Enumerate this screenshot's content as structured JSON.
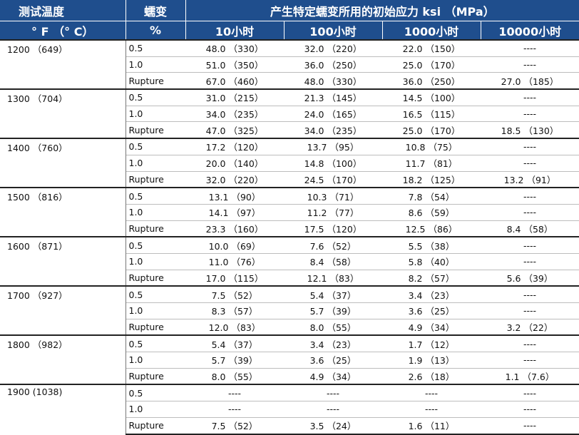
{
  "header": {
    "temp_label": "测试温度",
    "strain_label": "蠕变",
    "stress_label": "产生特定蠕变所用的初始应力 ksi （MPa）",
    "temp_unit": "° F （° C）",
    "strain_unit": "%",
    "time_cols": [
      "10小时",
      "100小时",
      "1000小时",
      "10000小时"
    ]
  },
  "groups": [
    {
      "temp": "1200 （649）",
      "rows": [
        {
          "strain": "0.5",
          "v": [
            "48.0 （330）",
            "32.0 （220）",
            "22.0 （150）",
            "----"
          ]
        },
        {
          "strain": "1.0",
          "v": [
            "51.0 （350）",
            "36.0 （250）",
            "25.0 （170）",
            "----"
          ]
        },
        {
          "strain": "Rupture",
          "v": [
            "67.0 （460）",
            "48.0 （330）",
            "36.0 （250）",
            "27.0 （185）"
          ]
        }
      ]
    },
    {
      "temp": "1300 （704）",
      "rows": [
        {
          "strain": "0.5",
          "v": [
            "31.0 （215）",
            "21.3 （145）",
            "14.5 （100）",
            "----"
          ]
        },
        {
          "strain": "1.0",
          "v": [
            "34.0 （235）",
            "24.0 （165）",
            "16.5 （115）",
            "----"
          ]
        },
        {
          "strain": "Rupture",
          "v": [
            "47.0 （325）",
            "34.0 （235）",
            "25.0 （170）",
            "18.5 （130）"
          ]
        }
      ]
    },
    {
      "temp": "1400 （760）",
      "rows": [
        {
          "strain": "0.5",
          "v": [
            "17.2 （120）",
            "13.7 （95）",
            "10.8 （75）",
            "----"
          ]
        },
        {
          "strain": "1.0",
          "v": [
            "20.0 （140）",
            "14.8 （100）",
            "11.7 （81）",
            "----"
          ]
        },
        {
          "strain": "Rupture",
          "v": [
            "32.0 （220）",
            "24.5 （170）",
            "18.2 （125）",
            "13.2 （91）"
          ]
        }
      ]
    },
    {
      "temp": "1500 （816）",
      "rows": [
        {
          "strain": "0.5",
          "v": [
            "13.1 （90）",
            "10.3 （71）",
            "7.8 （54）",
            "----"
          ]
        },
        {
          "strain": "1.0",
          "v": [
            "14.1 （97）",
            "11.2 （77）",
            "8.6 （59）",
            "----"
          ]
        },
        {
          "strain": "Rupture",
          "v": [
            "23.3 （160）",
            "17.5 （120）",
            "12.5 （86）",
            "8.4 （58）"
          ]
        }
      ]
    },
    {
      "temp": "1600 （871）",
      "rows": [
        {
          "strain": "0.5",
          "v": [
            "10.0 （69）",
            "7.6 （52）",
            "5.5 （38）",
            "----"
          ]
        },
        {
          "strain": "1.0",
          "v": [
            "11.0 （76）",
            "8.4 （58）",
            "5.8 （40）",
            "----"
          ]
        },
        {
          "strain": "Rupture",
          "v": [
            "17.0 （115）",
            "12.1 （83）",
            "8.2 （57）",
            "5.6 （39）"
          ]
        }
      ]
    },
    {
      "temp": "1700 （927）",
      "rows": [
        {
          "strain": "0.5",
          "v": [
            "7.5 （52）",
            "5.4 （37）",
            "3.4 （23）",
            "----"
          ]
        },
        {
          "strain": "1.0",
          "v": [
            "8.3 （57）",
            "5.7 （39）",
            "3.6 （25）",
            "----"
          ]
        },
        {
          "strain": "Rupture",
          "v": [
            "12.0 （83）",
            "8.0 （55）",
            "4.9 （34）",
            "3.2 （22）"
          ]
        }
      ]
    },
    {
      "temp": "1800 （982）",
      "rows": [
        {
          "strain": "0.5",
          "v": [
            "5.4 （37）",
            "3.4 （23）",
            "1.7 （12）",
            "----"
          ]
        },
        {
          "strain": "1.0",
          "v": [
            "5.7 （39）",
            "3.6 （25）",
            "1.9 （13）",
            "----"
          ]
        },
        {
          "strain": "Rupture",
          "v": [
            "8.0 （55）",
            "4.9 （34）",
            "2.6 （18）",
            "1.1 （7.6）"
          ]
        }
      ]
    },
    {
      "temp": "1900 (1038)",
      "rows": [
        {
          "strain": "0.5",
          "v": [
            "----",
            "----",
            "----",
            "----"
          ]
        },
        {
          "strain": "1.0",
          "v": [
            "----",
            "----",
            "----",
            "----"
          ]
        },
        {
          "strain": "Rupture",
          "v": [
            "7.5 （52）",
            "3.5 （24）",
            "1.6 （11）",
            "----"
          ]
        }
      ]
    }
  ],
  "colors": {
    "header_bg": "#1f4e8d",
    "header_text": "#ffffff",
    "rule": "#222222"
  }
}
